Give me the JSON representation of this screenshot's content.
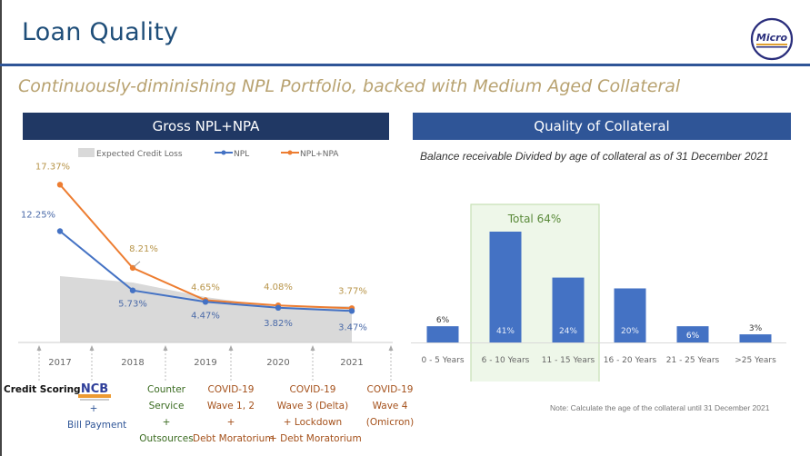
{
  "header": {
    "title": "Loan Quality",
    "logo_text": "Micro",
    "subtitle": "Continuously-diminishing NPL Portfolio, backed with Medium Aged Collateral"
  },
  "colors": {
    "navy": "#203864",
    "blue_header": "#2f5597",
    "npl": "#4472c4",
    "npl_npa": "#ed7d31",
    "ecl": "#d9d9d9",
    "highlight_bg": "#eef7e9",
    "highlight_border": "#c5e0b4",
    "subtitle_gold": "#b8a270"
  },
  "left_panel": {
    "heading": "Gross NPL+NPA",
    "legend": [
      "Expected Credit Loss",
      "NPL",
      "NPL+NPA"
    ]
  },
  "right_panel": {
    "heading": "Quality of Collateral",
    "subheading": "Balance receivable Divided by age of collateral as of 31 December 2021",
    "highlight_label": "Total 64%",
    "note": "Note: Calculate the age of the collateral until 31 December 2021"
  },
  "events": {
    "credit_scoring": "Credit Scoring",
    "ncb": {
      "logo": "NCB",
      "plus": "+",
      "label": "Bill Payment"
    },
    "counter": [
      "Counter",
      "Service",
      "+",
      "Outsources"
    ],
    "covid12": [
      "COVID-19",
      "Wave 1, 2",
      "+",
      "Debt Moratorium"
    ],
    "covid3": [
      "COVID-19",
      "Wave 3 (Delta)",
      "+ Lockdown",
      "+ Debt Moratorium"
    ],
    "covid4": [
      "COVID-19",
      "Wave 4",
      "(Omicron)"
    ]
  },
  "chart_data": [
    {
      "type": "line",
      "title": "Gross NPL+NPA",
      "categories": [
        "2017",
        "2018",
        "2019",
        "2020",
        "2021"
      ],
      "series": [
        {
          "name": "NPL",
          "values": [
            12.25,
            5.73,
            4.47,
            3.82,
            3.47
          ],
          "labels": [
            "12.25%",
            "5.73%",
            "4.47%",
            "3.82%",
            "3.47%"
          ]
        },
        {
          "name": "NPL+NPA",
          "values": [
            17.37,
            8.21,
            4.65,
            4.08,
            3.77
          ],
          "labels": [
            "17.37%",
            "8.21%",
            "4.65%",
            "4.08%",
            "3.77%"
          ]
        },
        {
          "name": "Expected Credit Loss",
          "type": "area",
          "values": [
            7.3,
            6.6,
            5.0,
            3.9,
            4.0
          ],
          "labels": []
        }
      ],
      "ylim": [
        0,
        19
      ],
      "legend": "top",
      "grid": false
    },
    {
      "type": "bar",
      "title": "Quality of Collateral",
      "categories": [
        "0 - 5 Years",
        "6 - 10 Years",
        "11 - 15 Years",
        "16 - 20 Years",
        "21 - 25 Years",
        ">25 Years"
      ],
      "values": [
        6,
        41,
        24,
        20,
        6,
        3
      ],
      "labels": [
        "6%",
        "41%",
        "24%",
        "20%",
        "6%",
        "3%"
      ],
      "highlight": {
        "categories": [
          "6 - 10 Years",
          "11 - 15 Years"
        ],
        "label": "Total 64%"
      },
      "ylim": [
        0,
        45
      ],
      "grid": false
    }
  ]
}
